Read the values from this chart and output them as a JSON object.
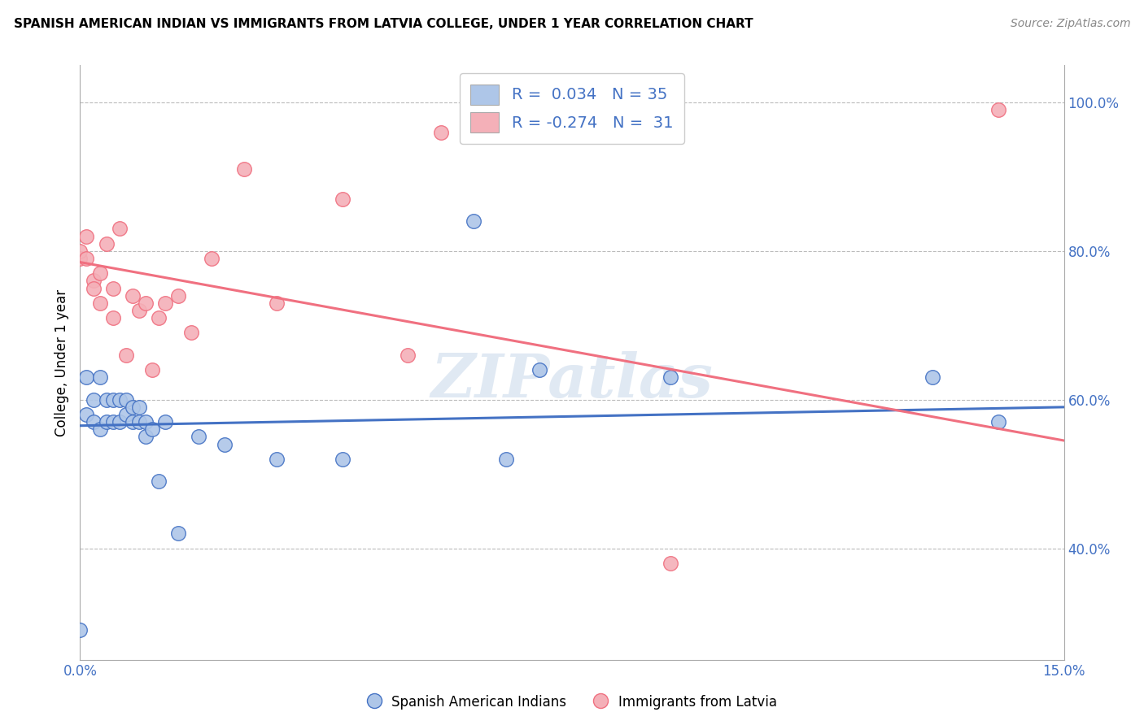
{
  "title": "SPANISH AMERICAN INDIAN VS IMMIGRANTS FROM LATVIA COLLEGE, UNDER 1 YEAR CORRELATION CHART",
  "source": "Source: ZipAtlas.com",
  "ylabel": "College, Under 1 year",
  "xlim": [
    0.0,
    0.15
  ],
  "ylim": [
    0.25,
    1.05
  ],
  "ytick_labels_right": [
    "100.0%",
    "80.0%",
    "60.0%",
    "40.0%"
  ],
  "ytick_positions_right": [
    1.0,
    0.8,
    0.6,
    0.4
  ],
  "blue_color": "#aec6e8",
  "pink_color": "#f4b0b8",
  "blue_line_color": "#4472c4",
  "pink_line_color": "#f07080",
  "watermark": "ZIPatlas",
  "blue_scatter_x": [
    0.0,
    0.001,
    0.001,
    0.002,
    0.002,
    0.003,
    0.003,
    0.004,
    0.004,
    0.005,
    0.005,
    0.006,
    0.006,
    0.007,
    0.007,
    0.008,
    0.008,
    0.009,
    0.009,
    0.01,
    0.01,
    0.011,
    0.012,
    0.013,
    0.015,
    0.018,
    0.022,
    0.03,
    0.04,
    0.06,
    0.065,
    0.07,
    0.09,
    0.13,
    0.14
  ],
  "blue_scatter_y": [
    0.29,
    0.63,
    0.58,
    0.6,
    0.57,
    0.56,
    0.63,
    0.57,
    0.6,
    0.6,
    0.57,
    0.6,
    0.57,
    0.6,
    0.58,
    0.59,
    0.57,
    0.59,
    0.57,
    0.57,
    0.55,
    0.56,
    0.49,
    0.57,
    0.42,
    0.55,
    0.54,
    0.52,
    0.52,
    0.84,
    0.52,
    0.64,
    0.63,
    0.63,
    0.57
  ],
  "pink_scatter_x": [
    0.0,
    0.0,
    0.001,
    0.001,
    0.002,
    0.002,
    0.003,
    0.003,
    0.004,
    0.005,
    0.005,
    0.006,
    0.007,
    0.008,
    0.009,
    0.01,
    0.011,
    0.012,
    0.013,
    0.015,
    0.017,
    0.02,
    0.025,
    0.03,
    0.04,
    0.05,
    0.055,
    0.09,
    0.14
  ],
  "pink_scatter_y": [
    0.79,
    0.8,
    0.79,
    0.82,
    0.76,
    0.75,
    0.77,
    0.73,
    0.81,
    0.71,
    0.75,
    0.83,
    0.66,
    0.74,
    0.72,
    0.73,
    0.64,
    0.71,
    0.73,
    0.74,
    0.69,
    0.79,
    0.91,
    0.73,
    0.87,
    0.66,
    0.96,
    0.38,
    0.99
  ],
  "blue_trend_x": [
    0.0,
    0.15
  ],
  "blue_trend_y": [
    0.565,
    0.59
  ],
  "pink_trend_x": [
    0.0,
    0.15
  ],
  "pink_trend_y": [
    0.785,
    0.545
  ]
}
